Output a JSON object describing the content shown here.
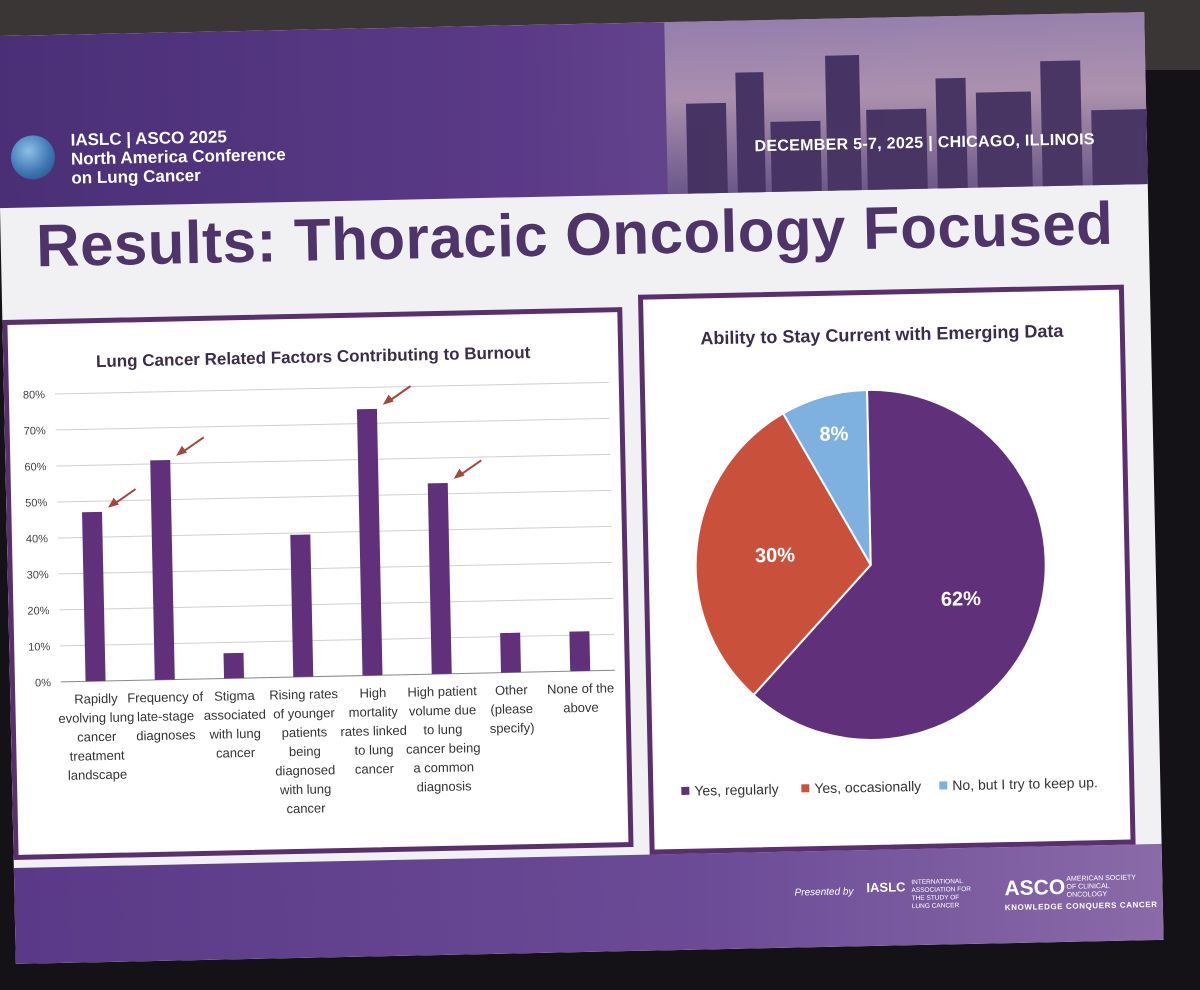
{
  "header": {
    "org_line": "IASLC | ASCO 2025",
    "conf_line1": "North America Conference",
    "conf_line2": "on Lung Cancer",
    "dates": "DECEMBER 5-7, 2025 | CHICAGO, ILLINOIS"
  },
  "slide_title": "Results: Thoracic Oncology Focused",
  "footer": {
    "presented_by": "Presented by",
    "iaslc": "IASLC",
    "iaslc_full": "INTERNATIONAL ASSOCIATION FOR THE STUDY OF LUNG CANCER",
    "asco": "ASCO",
    "asco_full": "AMERICAN SOCIETY OF CLINICAL ONCOLOGY",
    "asco_tagline": "KNOWLEDGE CONQUERS CANCER"
  },
  "colors": {
    "purple": "#60317a",
    "red": "#c9513c",
    "blue": "#7fb1e0",
    "arrow": "#a3473e"
  },
  "chart_data": [
    {
      "type": "bar",
      "title": "Lung Cancer Related Factors Contributing to Burnout",
      "categories": [
        [
          "Rapidly",
          "evolving lung",
          "cancer",
          "treatment",
          "landscape"
        ],
        [
          "Frequency of",
          "late-stage",
          "diagnoses"
        ],
        [
          "Stigma",
          "associated",
          "with lung",
          "cancer"
        ],
        [
          "Rising rates",
          "of younger",
          "patients",
          "being",
          "diagnosed",
          "with lung",
          "cancer"
        ],
        [
          "High",
          "mortality",
          "rates linked",
          "to lung",
          "cancer"
        ],
        [
          "High patient",
          "volume due",
          "to lung",
          "cancer being",
          "a common",
          "diagnosis"
        ],
        [
          "Other",
          "(please",
          "specify)"
        ],
        [
          "None of the",
          "above"
        ]
      ],
      "values": [
        47,
        61,
        7,
        39.5,
        74,
        53,
        11,
        11
      ],
      "y_ticks": [
        "0%",
        "10%",
        "20%",
        "30%",
        "40%",
        "50%",
        "60%",
        "70%",
        "80%"
      ],
      "ylim": [
        0,
        80
      ],
      "grid": true,
      "arrows_on": [
        0,
        1,
        4,
        5
      ]
    },
    {
      "type": "pie",
      "title": "Ability to Stay Current with Emerging Data",
      "series": [
        {
          "name": "Yes, regularly",
          "value": 62,
          "label": "62%"
        },
        {
          "name": "Yes, occasionally",
          "value": 30,
          "label": "30%"
        },
        {
          "name": "No, but I try to keep up.",
          "value": 8,
          "label": "8%"
        }
      ],
      "legend": "bottom"
    }
  ]
}
